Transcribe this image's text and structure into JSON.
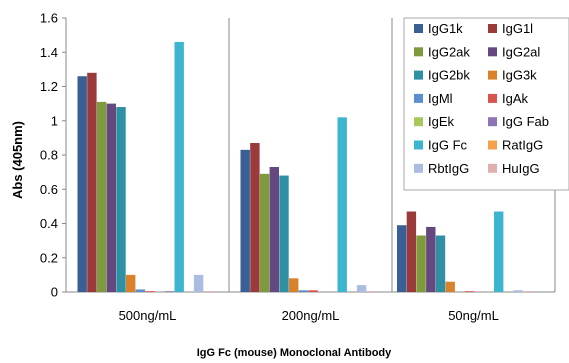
{
  "chart_data": {
    "type": "bar",
    "title": "",
    "xlabel": "IgG Fc (mouse) Monoclonal Antibody",
    "ylabel": "Abs (405nm)",
    "ylim": [
      0,
      1.6
    ],
    "yticks": [
      "0",
      "0.2",
      "0.4",
      "0.6",
      "0.8",
      "1",
      "1.2",
      "1.4",
      "1.6"
    ],
    "grid": false,
    "legend_position": "top-right",
    "categories": [
      "500ng/mL",
      "200ng/mL",
      "50ng/mL"
    ],
    "series": [
      {
        "name": "IgG1k",
        "color": "#3a5f95",
        "values": [
          1.26,
          0.83,
          0.39
        ]
      },
      {
        "name": "IgG1l",
        "color": "#9b3a3a",
        "values": [
          1.28,
          0.87,
          0.47
        ]
      },
      {
        "name": "IgG2ak",
        "color": "#7f9a3d",
        "values": [
          1.11,
          0.69,
          0.33
        ]
      },
      {
        "name": "IgG2al",
        "color": "#64487f",
        "values": [
          1.1,
          0.73,
          0.38
        ]
      },
      {
        "name": "IgG2bk",
        "color": "#2f8fa3",
        "values": [
          1.08,
          0.68,
          0.33
        ]
      },
      {
        "name": "IgG3k",
        "color": "#d9822b",
        "values": [
          0.1,
          0.08,
          0.06
        ]
      },
      {
        "name": "IgMl",
        "color": "#5b8fd0",
        "values": [
          0.015,
          0.01,
          0.0
        ]
      },
      {
        "name": "IgAk",
        "color": "#d9534f",
        "values": [
          0.005,
          0.01,
          0.005
        ]
      },
      {
        "name": "IgEk",
        "color": "#a9c85c",
        "values": [
          0.0,
          0.0,
          0.0
        ]
      },
      {
        "name": "IgG Fab",
        "color": "#8d76b5",
        "values": [
          0.005,
          0.0,
          0.0
        ]
      },
      {
        "name": "IgG Fc",
        "color": "#3cb6cf",
        "values": [
          1.46,
          1.02,
          0.47
        ]
      },
      {
        "name": "RatIgG",
        "color": "#f5a04a",
        "values": [
          0.0,
          0.0,
          0.0
        ]
      },
      {
        "name": "RbtIgG",
        "color": "#aabce0",
        "values": [
          0.1,
          0.04,
          0.01
        ]
      },
      {
        "name": "HuIgG",
        "color": "#dfb0ae",
        "values": [
          0.005,
          0.005,
          0.005
        ]
      }
    ]
  }
}
